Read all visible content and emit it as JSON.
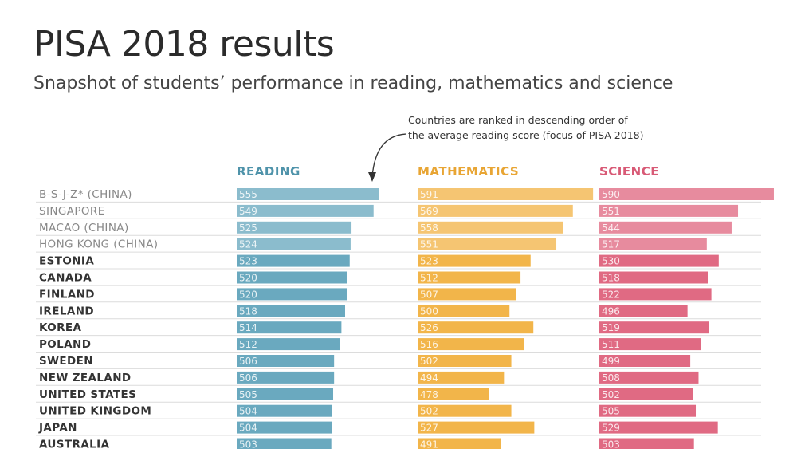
{
  "header": {
    "title": "PISA 2018 results",
    "subtitle": "Snapshot of students’ performance in reading, mathematics and science",
    "note_line1": "Countries are ranked in descending order of",
    "note_line2": "the average reading score (focus of PISA 2018)"
  },
  "colors": {
    "reading": "#6aa9bf",
    "mathematics": "#f2b54a",
    "science": "#e06a83",
    "reading_head": "#4f93aa",
    "mathematics_head": "#e8a534",
    "science_head": "#d85a76"
  },
  "chart_data": {
    "type": "bar",
    "title": "PISA 2018 results",
    "categories": [
      "B-S-J-Z* (CHINA)",
      "SINGAPORE",
      "MACAO (CHINA)",
      "HONG KONG (CHINA)",
      "ESTONIA",
      "CANADA",
      "FINLAND",
      "IRELAND",
      "KOREA",
      "POLAND",
      "SWEDEN",
      "NEW ZEALAND",
      "UNITED STATES",
      "UNITED KINGDOM",
      "JAPAN",
      "AUSTRALIA"
    ],
    "non_oecd": [
      true,
      true,
      true,
      true,
      false,
      false,
      false,
      false,
      false,
      false,
      false,
      false,
      false,
      false,
      false,
      false
    ],
    "series": [
      {
        "name": "READING",
        "values": [
          555,
          549,
          525,
          524,
          523,
          520,
          520,
          518,
          514,
          512,
          506,
          506,
          505,
          504,
          504,
          503
        ]
      },
      {
        "name": "MATHEMATICS",
        "values": [
          591,
          569,
          558,
          551,
          523,
          512,
          507,
          500,
          526,
          516,
          502,
          494,
          478,
          502,
          527,
          491
        ]
      },
      {
        "name": "SCIENCE",
        "values": [
          590,
          551,
          544,
          517,
          530,
          518,
          522,
          496,
          519,
          511,
          499,
          508,
          502,
          505,
          529,
          503
        ]
      }
    ]
  }
}
